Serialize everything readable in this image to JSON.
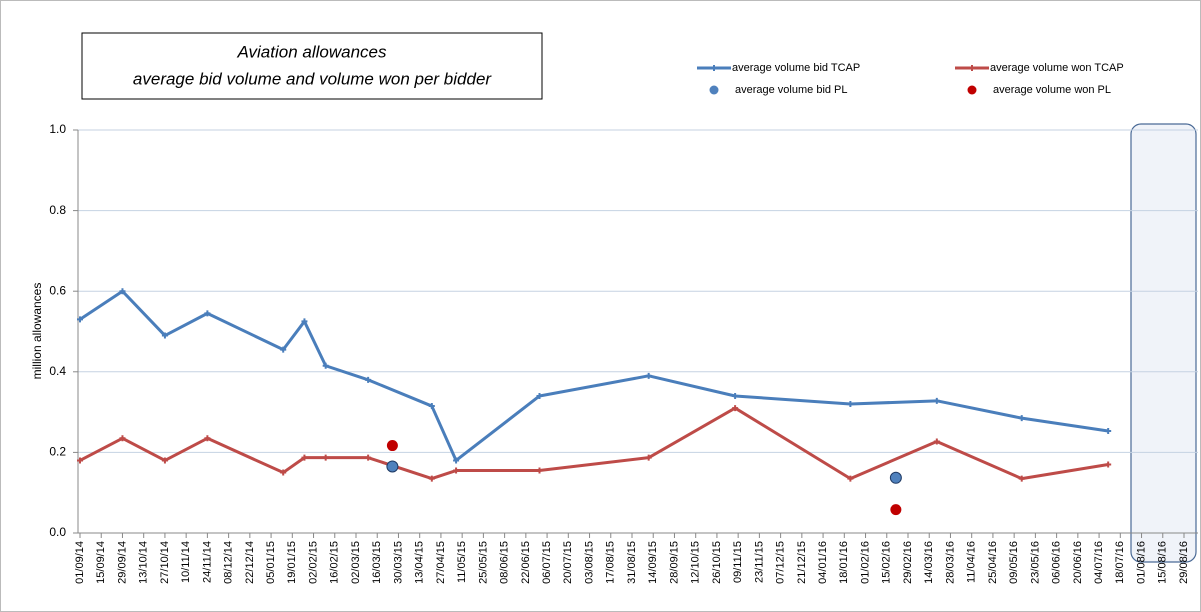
{
  "chart_data": {
    "type": "line",
    "title": [
      "Aviation allowances",
      "average bid volume and volume won per bidder"
    ],
    "ylabel": "million allowances",
    "ylim": [
      0,
      1
    ],
    "yticks": [
      {
        "value": 0,
        "label": "0.0"
      },
      0.2,
      0.4,
      0.6,
      0.8,
      {
        "value": 1,
        "label": "1.0"
      }
    ],
    "grid": true,
    "legend": "top right",
    "xlim": [
      "01/09/14",
      "29/08/16"
    ],
    "xticks": [
      "01/09/14",
      "15/09/14",
      "29/09/14",
      "13/10/14",
      "27/10/14",
      "10/11/14",
      "24/11/14",
      "08/12/14",
      "22/12/14",
      "05/01/15",
      "19/01/15",
      "02/02/15",
      "16/02/15",
      "02/03/15",
      "16/03/15",
      "30/03/15",
      "13/04/15",
      "27/04/15",
      "11/05/15",
      "25/05/15",
      "08/06/15",
      "22/06/15",
      "06/07/15",
      "20/07/15",
      "03/08/15",
      "17/08/15",
      "31/08/15",
      "14/09/15",
      "28/09/15",
      "12/10/15",
      "26/10/15",
      "09/11/15",
      "23/11/15",
      "07/12/15",
      "21/12/15",
      "04/01/16",
      "18/01/16",
      "01/02/16",
      "15/02/16",
      "29/02/16",
      "14/03/16",
      "28/03/16",
      "11/04/16",
      "25/04/16",
      "09/05/16",
      "23/05/16",
      "06/06/16",
      "20/06/16",
      "04/07/16",
      "18/07/16",
      "01/08/16",
      "15/08/16",
      "29/08/16"
    ],
    "series": [
      {
        "name": "average volume bid TCAP",
        "color": "#4a7ebb",
        "style": "line",
        "x": [
          "01/09/14",
          "29/09/14",
          "27/10/14",
          "24/11/14",
          "13/01/15",
          "27/01/15",
          "10/02/15",
          "10/03/15",
          "21/04/15",
          "07/05/15",
          "01/07/15",
          "11/09/15",
          "07/11/15",
          "22/01/16",
          "19/03/16",
          "14/05/16",
          "10/07/16"
        ],
        "values": [
          0.53,
          0.6,
          0.49,
          0.545,
          0.455,
          0.525,
          0.415,
          0.38,
          0.315,
          0.18,
          0.34,
          0.39,
          0.34,
          0.32,
          0.328,
          0.285,
          0.253
        ]
      },
      {
        "name": "average volume won TCAP",
        "color": "#be4b48",
        "style": "line",
        "x": [
          "01/09/14",
          "29/09/14",
          "27/10/14",
          "24/11/14",
          "13/01/15",
          "27/01/15",
          "10/02/15",
          "10/03/15",
          "21/04/15",
          "07/05/15",
          "01/07/15",
          "11/09/15",
          "07/11/15",
          "22/01/16",
          "19/03/16",
          "14/05/16",
          "10/07/16"
        ],
        "values": [
          0.18,
          0.235,
          0.18,
          0.235,
          0.15,
          0.187,
          0.187,
          0.187,
          0.135,
          0.155,
          0.155,
          0.187,
          0.31,
          0.135,
          0.227,
          0.135,
          0.17
        ]
      },
      {
        "name": "average volume bid PL",
        "color": "#4f81bd",
        "style": "points",
        "x": [
          "26/03/15",
          "21/02/16"
        ],
        "values": [
          0.165,
          0.137
        ]
      },
      {
        "name": "average volume won PL",
        "color": "#c00000",
        "style": "points",
        "x": [
          "26/03/15",
          "21/02/16"
        ],
        "values": [
          0.217,
          0.058
        ]
      }
    ]
  }
}
